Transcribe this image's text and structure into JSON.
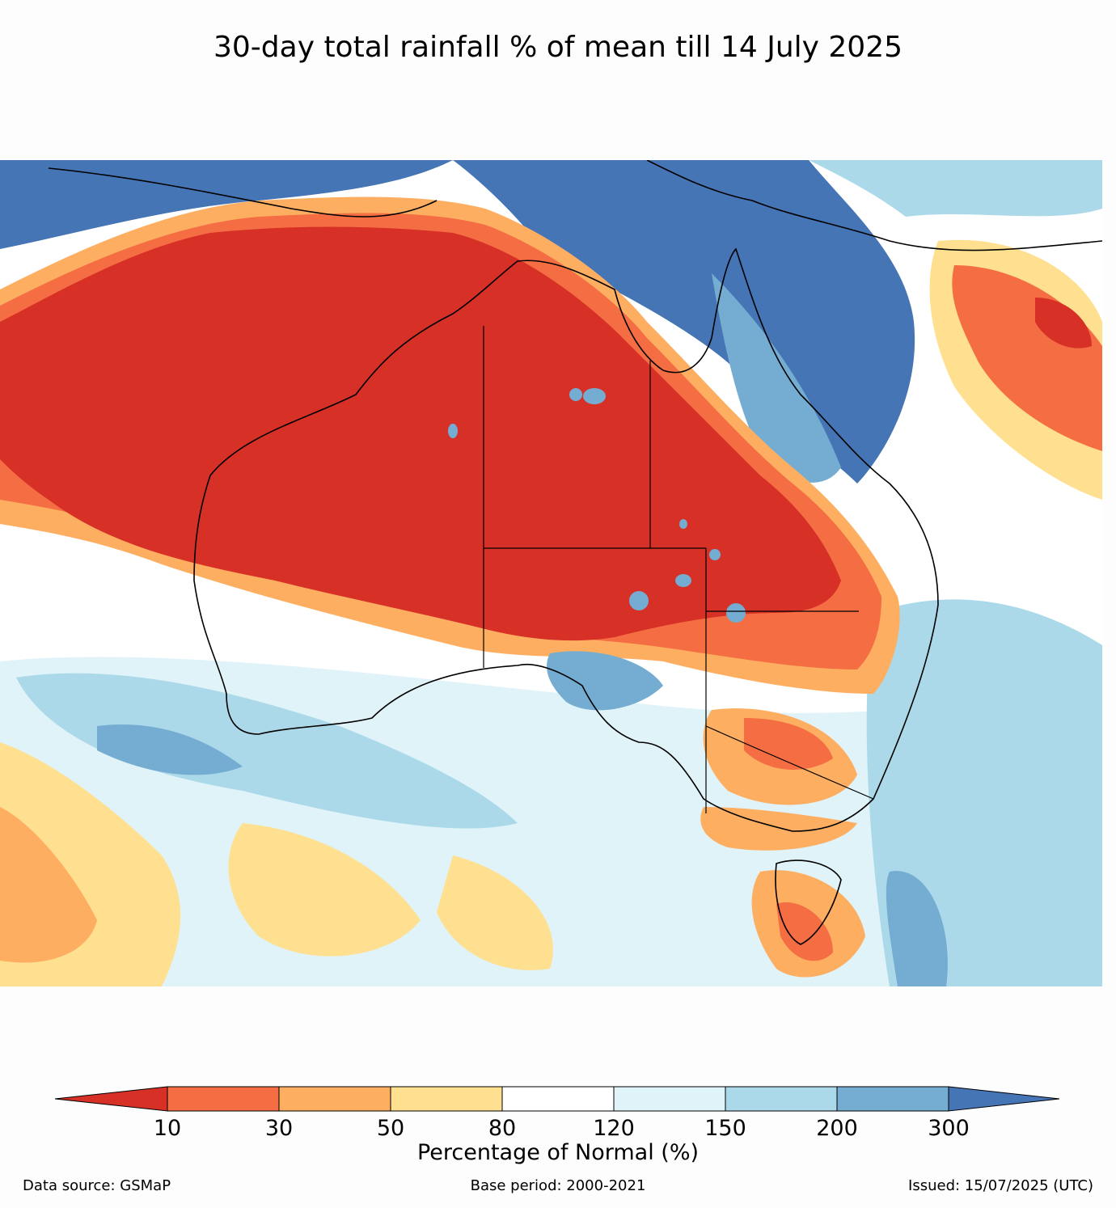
{
  "title": "30-day total rainfall % of mean till 14 July 2025",
  "map": {
    "region": "Australia",
    "category_colors": {
      "lt10": "#d73027",
      "10-30": "#f46d43",
      "30-50": "#fdae61",
      "50-80": "#fee090",
      "80-120": "#ffffff",
      "120-150": "#e0f3f8",
      "150-200": "#abd9e9",
      "200-300": "#74add1",
      "gt300": "#4575b4"
    }
  },
  "legend": {
    "ticks": [
      "10",
      "30",
      "50",
      "80",
      "120",
      "150",
      "200",
      "300"
    ],
    "colors": [
      "#d73027",
      "#f46d43",
      "#fdae61",
      "#fee090",
      "#ffffff",
      "#e0f3f8",
      "#abd9e9",
      "#74add1",
      "#4575b4"
    ],
    "label": "Percentage of Normal (%)"
  },
  "footer": {
    "source": "Data source: GSMaP",
    "base_period": "Base period: 2000-2021",
    "issued": "Issued: 15/07/2025 (UTC)"
  }
}
